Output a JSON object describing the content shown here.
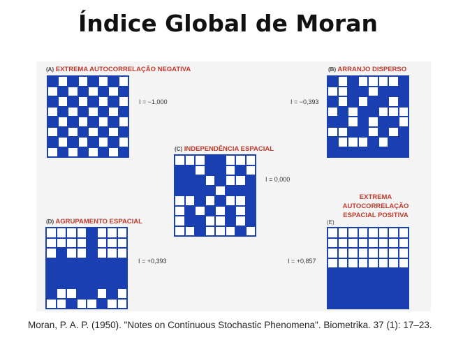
{
  "title": "Índice Global de Moran",
  "citation": "Moran, P. A. P. (1950). \"Notes on Continuous Stochastic Phenomena\". Biometrika. 37 (1): 17–23.",
  "colors": {
    "cell_fill": "#1a3fb0",
    "label": "#c0392b"
  },
  "panels": {
    "a": {
      "letter": "(A)",
      "label": "EXTREMA AUTOCORRELAÇÃO NEGATIVA",
      "index": "I = −1,000",
      "grid": [
        "10101010",
        "01010101",
        "10101010",
        "01010101",
        "10101010",
        "01010101",
        "10101010",
        "01010101"
      ]
    },
    "b": {
      "letter": "(B)",
      "label": "ARRANJO DISPERSO",
      "index": "I = −0,393",
      "grid": [
        "10100001",
        "00110111",
        "10101101",
        "01011000",
        "11010110",
        "00110101",
        "10001011",
        "11111111"
      ]
    },
    "c": {
      "letter": "(C)",
      "label": "INDEPENDÊNCIA ESPACIAL",
      "index": "I = 0,000",
      "grid": [
        "00011000",
        "11011010",
        "11101001",
        "11110111",
        "00101001",
        "01010101",
        "01100101",
        "00100010"
      ]
    },
    "d": {
      "letter": "(D)",
      "label": "AGRUPAMENTO ESPACIAL",
      "index": "I = +0,393",
      "grid": [
        "00001000",
        "00001000",
        "01001000",
        "11111111",
        "11111111",
        "11111111",
        "10011010",
        "00100100"
      ]
    },
    "e": {
      "letter": "(E)",
      "label": "EXTREMA AUTOCORRELAÇÃO ESPACIAL POSITIVA",
      "index": "I = +0,857",
      "grid": [
        "00000000",
        "00000000",
        "00000000",
        "00000000",
        "11111111",
        "11111111",
        "11111111",
        "11111111"
      ]
    }
  }
}
